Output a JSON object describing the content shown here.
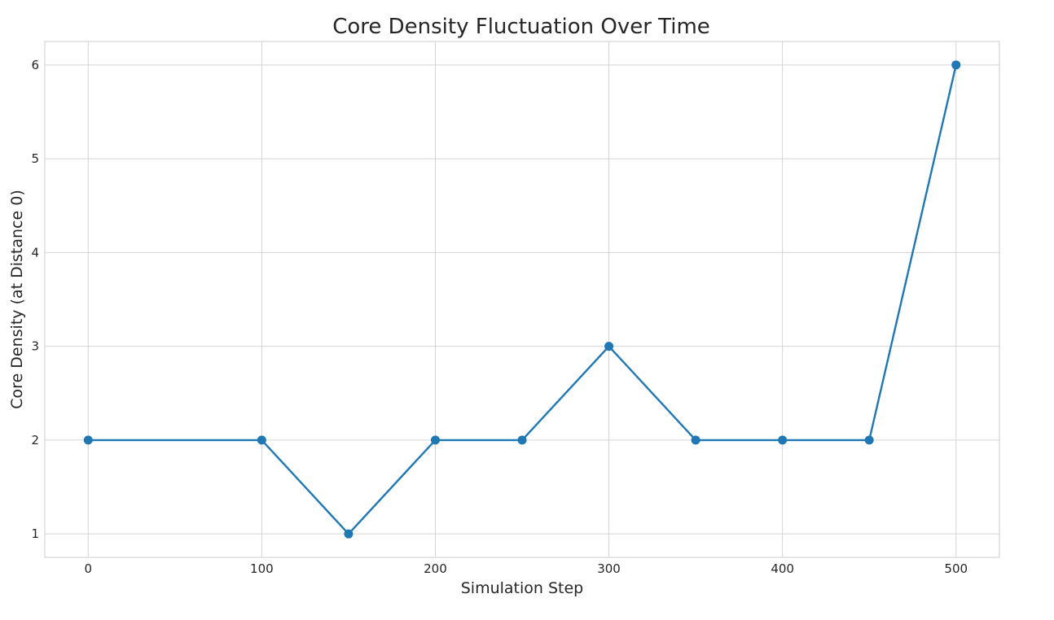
{
  "chart_data": {
    "type": "line",
    "title": "Core Density Fluctuation Over Time",
    "xlabel": "Simulation Step",
    "ylabel": "Core Density (at Distance 0)",
    "x": [
      0,
      100,
      150,
      200,
      250,
      300,
      350,
      400,
      450,
      500
    ],
    "series": [
      {
        "values": [
          2,
          2,
          1,
          2,
          2,
          3,
          2,
          2,
          2,
          6
        ],
        "color": "#1f77b4",
        "marker": "circle"
      }
    ],
    "xticks": [
      0,
      100,
      200,
      300,
      400,
      500
    ],
    "yticks": [
      1,
      2,
      3,
      4,
      5,
      6
    ],
    "xlim": [
      -25,
      525
    ],
    "ylim": [
      0.75,
      6.25
    ],
    "grid": true
  }
}
